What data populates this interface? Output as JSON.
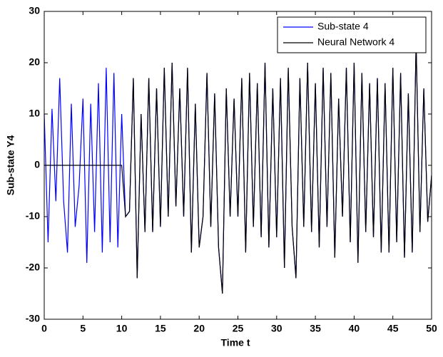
{
  "chart_data": {
    "type": "line",
    "xlabel": "Time t",
    "ylabel": "Sub-state Y4",
    "x": [
      0,
      0.5,
      1,
      1.5,
      2,
      2.5,
      3,
      3.5,
      4,
      4.5,
      5,
      5.5,
      6,
      6.5,
      7,
      7.5,
      8,
      8.5,
      9,
      9.5,
      10,
      10.5,
      11,
      11.5,
      12,
      12.5,
      13,
      13.5,
      14,
      14.5,
      15,
      15.5,
      16,
      16.5,
      17,
      17.5,
      18,
      18.5,
      19,
      19.5,
      20,
      20.5,
      21,
      21.5,
      22,
      22.5,
      23,
      23.5,
      24,
      24.5,
      25,
      25.5,
      26,
      26.5,
      27,
      27.5,
      28,
      28.5,
      29,
      29.5,
      30,
      30.5,
      31,
      31.5,
      32,
      32.5,
      33,
      33.5,
      34,
      34.5,
      35,
      35.5,
      36,
      36.5,
      37,
      37.5,
      38,
      38.5,
      39,
      39.5,
      40,
      40.5,
      41,
      41.5,
      42,
      42.5,
      43,
      43.5,
      44,
      44.5,
      45,
      45.5,
      46,
      46.5,
      47,
      47.5,
      48,
      48.5,
      49,
      49.5,
      50
    ],
    "series": [
      {
        "name": "Sub-state 4",
        "color": "#0000ff",
        "values": [
          10,
          -15,
          11,
          -7,
          17,
          -7,
          -17,
          12,
          -12,
          -4,
          13,
          -19,
          12,
          -13,
          16,
          -17,
          19,
          -15,
          18,
          -16,
          10,
          -10,
          -9,
          17,
          -22,
          10,
          -13,
          17,
          -13,
          15,
          -12,
          19,
          -10,
          20,
          -8,
          15,
          -10,
          19,
          -17,
          12,
          -16,
          -10,
          18,
          -12,
          14,
          -16,
          -25,
          15,
          -10,
          13,
          -10,
          17,
          -17,
          18,
          -12,
          16,
          -14,
          20,
          -16,
          15,
          -14,
          17,
          -20,
          19,
          -12,
          -22,
          17,
          -12,
          20,
          -13,
          16,
          -16,
          19,
          -12,
          18,
          -18,
          13,
          -10,
          19,
          -15,
          20,
          -19,
          18,
          -13,
          16,
          -14,
          17,
          -17,
          16,
          -17,
          19,
          -15,
          18,
          -18,
          14,
          -17,
          24,
          -13,
          15,
          -11,
          -2
        ]
      },
      {
        "name": "Neural Network 4",
        "color": "#000000",
        "values": [
          0,
          0,
          0,
          0,
          0,
          0,
          0,
          0,
          0,
          0,
          0,
          0,
          0,
          0,
          0,
          0,
          0,
          0,
          0,
          0,
          0,
          -10,
          -9,
          17,
          -22,
          10,
          -13,
          17,
          -13,
          15,
          -12,
          19,
          -10,
          20,
          -8,
          15,
          -10,
          19,
          -17,
          12,
          -16,
          -10,
          18,
          -12,
          14,
          -16,
          -25,
          15,
          -10,
          13,
          -10,
          17,
          -17,
          18,
          -12,
          16,
          -14,
          20,
          -16,
          15,
          -14,
          17,
          -20,
          19,
          -12,
          -22,
          17,
          -12,
          20,
          -13,
          16,
          -16,
          19,
          -12,
          18,
          -18,
          13,
          -10,
          19,
          -15,
          20,
          -19,
          18,
          -13,
          16,
          -14,
          17,
          -17,
          16,
          -17,
          19,
          -15,
          18,
          -18,
          14,
          -17,
          24,
          -13,
          15,
          -11,
          -2
        ]
      }
    ],
    "xlim": [
      0,
      50
    ],
    "xticks": [
      0,
      5,
      10,
      15,
      20,
      25,
      30,
      35,
      40,
      45,
      50
    ],
    "ylim": [
      -30,
      30
    ],
    "yticks": [
      -30,
      -20,
      -10,
      0,
      10,
      20,
      30
    ],
    "legend": "top-right"
  }
}
